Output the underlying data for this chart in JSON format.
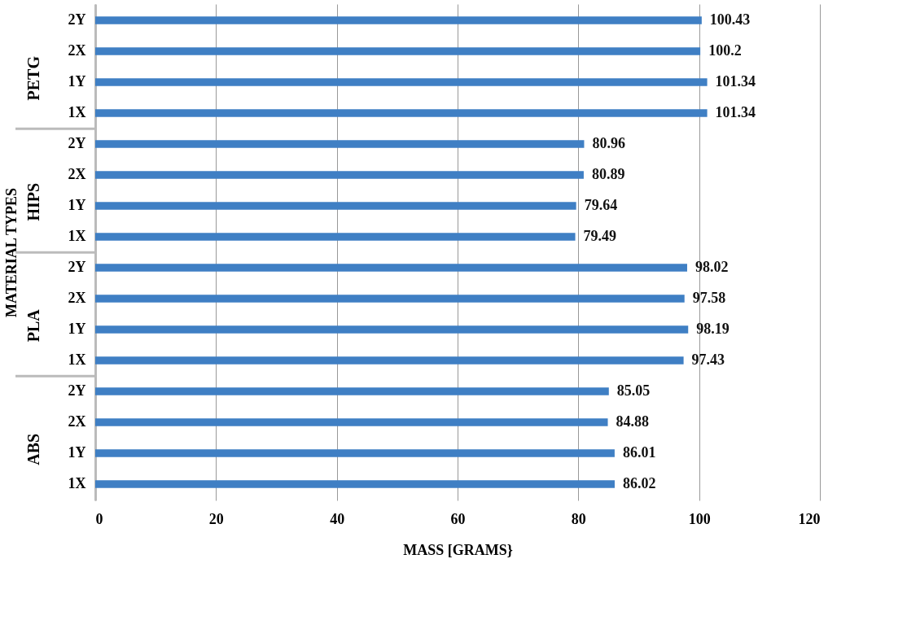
{
  "chart_data": {
    "type": "bar",
    "orientation": "horizontal",
    "xlabel": "MASS [GRAMS}",
    "ylabel": "MATERIAL TYPES",
    "categories": [
      "2Y",
      "2X",
      "1Y",
      "1X",
      "2Y",
      "2X",
      "1Y",
      "1X",
      "2Y",
      "2X",
      "1Y",
      "1X",
      "2Y",
      "2X",
      "1Y",
      "1X"
    ],
    "values": [
      100.43,
      100.2,
      101.34,
      101.34,
      80.96,
      80.89,
      79.64,
      79.49,
      98.02,
      97.58,
      98.19,
      97.43,
      85.05,
      84.88,
      86.01,
      86.02
    ],
    "color": "#3f7fc4",
    "annotations": [
      "PETG",
      "HIPS",
      "PLA",
      "ABS"
    ],
    "xlim": [
      0,
      120
    ],
    "xticks": [
      0,
      20,
      40,
      60,
      80,
      100,
      120
    ],
    "grid": "x",
    "data_labels": true
  }
}
